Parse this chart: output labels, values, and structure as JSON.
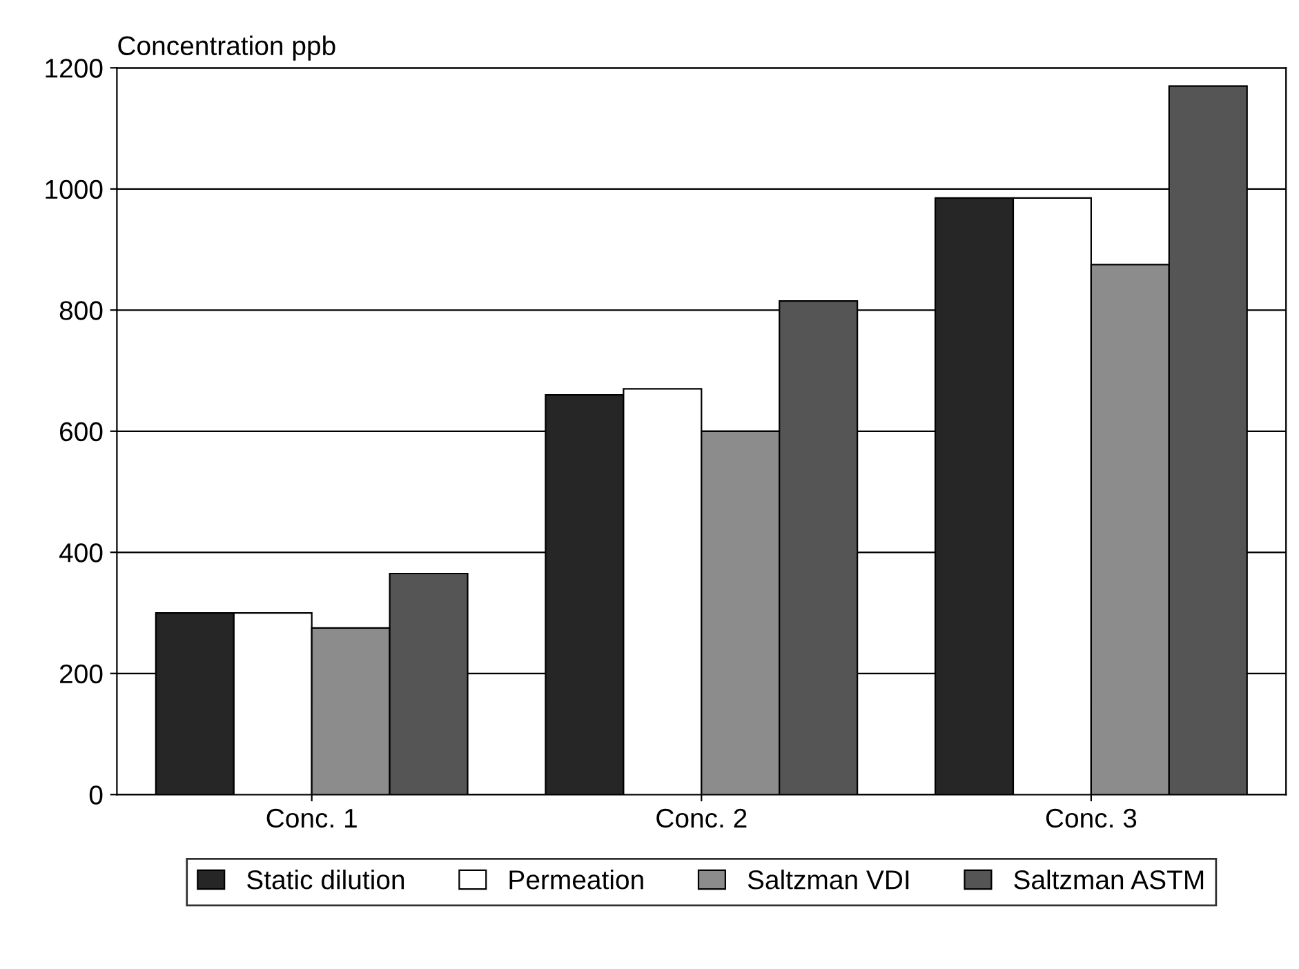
{
  "chart_data": {
    "type": "bar",
    "ylabel": "Concentration ppb",
    "categories": [
      "Conc. 1",
      "Conc. 2",
      "Conc. 3"
    ],
    "series": [
      {
        "name": "Static dilution",
        "color": "#262626",
        "values": [
          300,
          660,
          985
        ]
      },
      {
        "name": "Permeation",
        "color": "#ffffff",
        "values": [
          300,
          670,
          985
        ]
      },
      {
        "name": "Saltzman VDI",
        "color": "#8c8c8c",
        "values": [
          275,
          600,
          875
        ]
      },
      {
        "name": "Saltzman ASTM",
        "color": "#555555",
        "values": [
          365,
          815,
          1170
        ]
      }
    ],
    "ylim": [
      0,
      1200
    ],
    "yticks": [
      0,
      200,
      400,
      600,
      800,
      1000,
      1200
    ],
    "grid": "y",
    "legend": "bottom"
  }
}
